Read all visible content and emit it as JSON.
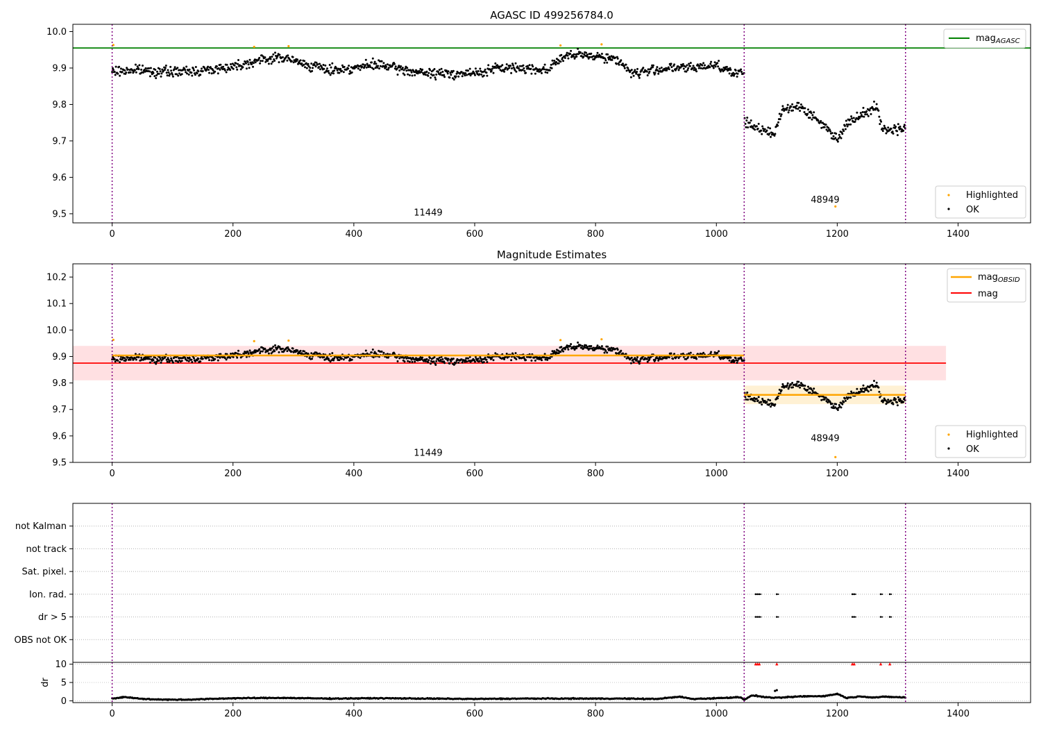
{
  "chart_data": [
    {
      "type": "scatter",
      "title": "AGASC ID 499256784.0",
      "xlim": [
        -65,
        1520
      ],
      "ylim": [
        9.475,
        10.02
      ],
      "xticks": [
        0,
        200,
        400,
        600,
        800,
        1000,
        1200,
        1400
      ],
      "xtick_labels": [
        "0",
        "200",
        "400",
        "600",
        "800",
        "1000",
        "1200",
        "1400"
      ],
      "yticks": [
        9.5,
        9.6,
        9.7,
        9.8,
        9.9,
        10.0
      ],
      "ytick_labels": [
        "9.5",
        "9.6",
        "9.7",
        "9.8",
        "9.9",
        "10.0"
      ],
      "grid": false,
      "obsid_boundaries": [
        0,
        1046,
        1313
      ],
      "obsid_labels": [
        {
          "text": "11449",
          "x": 523,
          "y": 9.495
        },
        {
          "text": "48949",
          "x": 1180,
          "y": 9.53
        }
      ],
      "reference_lines": [
        {
          "name": "mag_AGASC",
          "label_main": "mag",
          "label_sub": "AGASC",
          "y": 9.955,
          "color": "#008000"
        }
      ],
      "series": [
        {
          "name": "OK",
          "color": "#000000",
          "trend_points": [
            [
              0,
              9.89
            ],
            [
              40,
              9.895
            ],
            [
              80,
              9.89
            ],
            [
              120,
              9.89
            ],
            [
              160,
              9.895
            ],
            [
              200,
              9.905
            ],
            [
              240,
              9.92
            ],
            [
              280,
              9.93
            ],
            [
              320,
              9.91
            ],
            [
              360,
              9.895
            ],
            [
              400,
              9.9
            ],
            [
              440,
              9.91
            ],
            [
              480,
              9.895
            ],
            [
              520,
              9.885
            ],
            [
              560,
              9.885
            ],
            [
              600,
              9.885
            ],
            [
              640,
              9.9
            ],
            [
              680,
              9.9
            ],
            [
              720,
              9.895
            ],
            [
              740,
              9.925
            ],
            [
              760,
              9.935
            ],
            [
              800,
              9.935
            ],
            [
              840,
              9.92
            ],
            [
              860,
              9.885
            ],
            [
              880,
              9.89
            ],
            [
              920,
              9.9
            ],
            [
              960,
              9.9
            ],
            [
              1000,
              9.91
            ],
            [
              1030,
              9.885
            ],
            [
              1046,
              9.885
            ],
            [
              1047,
              9.75
            ],
            [
              1070,
              9.735
            ],
            [
              1095,
              9.715
            ],
            [
              1110,
              9.79
            ],
            [
              1140,
              9.795
            ],
            [
              1160,
              9.765
            ],
            [
              1180,
              9.74
            ],
            [
              1200,
              9.705
            ],
            [
              1215,
              9.745
            ],
            [
              1240,
              9.775
            ],
            [
              1265,
              9.795
            ],
            [
              1275,
              9.73
            ],
            [
              1313,
              9.735
            ]
          ],
          "spread": 0.012
        },
        {
          "name": "Highlighted",
          "color": "#ffa500",
          "points": [
            [
              2,
              9.963
            ],
            [
              235,
              9.958
            ],
            [
              292,
              9.96
            ],
            [
              742,
              9.962
            ],
            [
              810,
              9.965
            ],
            [
              1197,
              9.52
            ]
          ]
        }
      ],
      "legends": [
        {
          "placement": "upper-right",
          "entries": [
            "mag_AGASC"
          ]
        },
        {
          "placement": "lower-right",
          "entries": [
            "Highlighted",
            "OK"
          ]
        }
      ]
    },
    {
      "type": "scatter",
      "title": "Magnitude Estimates",
      "xlim": [
        -65,
        1520
      ],
      "ylim": [
        9.5,
        10.25
      ],
      "xticks": [
        0,
        200,
        400,
        600,
        800,
        1000,
        1200,
        1400
      ],
      "xtick_labels": [
        "0",
        "200",
        "400",
        "600",
        "800",
        "1000",
        "1200",
        "1400"
      ],
      "yticks": [
        9.5,
        9.6,
        9.7,
        9.8,
        9.9,
        10.0,
        10.1,
        10.2
      ],
      "ytick_labels": [
        "9.5",
        "9.6",
        "9.7",
        "9.8",
        "9.9",
        "10.0",
        "10.1",
        "10.2"
      ],
      "grid": false,
      "obsid_boundaries": [
        0,
        1046,
        1313
      ],
      "obsid_labels": [
        {
          "text": "11449",
          "x": 523,
          "y": 9.525
        },
        {
          "text": "48949",
          "x": 1180,
          "y": 9.58
        }
      ],
      "mag_line": {
        "name": "mag",
        "y": 9.875,
        "band": [
          9.81,
          9.94
        ],
        "x_range": [
          -65,
          1380
        ],
        "color": "#ff0000",
        "band_color": "#ffe0e2"
      },
      "obsid_mag_segments": [
        {
          "x_range": [
            0,
            1046
          ],
          "y": 9.904,
          "band": [
            9.9,
            9.908
          ]
        },
        {
          "x_range": [
            1046,
            1313
          ],
          "y": 9.755,
          "band": [
            9.72,
            9.79
          ]
        }
      ],
      "obsid_mag_style": {
        "name": "mag_OBSID",
        "label_main": "mag",
        "label_sub": "OBSID",
        "color": "#ffa500",
        "band_color": "#fff1d4"
      },
      "series": [
        {
          "name": "OK",
          "color": "#000000",
          "same_as_panel": 0
        },
        {
          "name": "Highlighted",
          "color": "#ffa500",
          "points": [
            [
              2,
              9.963
            ],
            [
              235,
              9.958
            ],
            [
              292,
              9.96
            ],
            [
              742,
              9.962
            ],
            [
              810,
              9.965
            ],
            [
              1197,
              9.52
            ]
          ]
        }
      ],
      "legends": [
        {
          "placement": "upper-right",
          "entries": [
            "mag_OBSID",
            "mag"
          ]
        },
        {
          "placement": "lower-right",
          "entries": [
            "Highlighted",
            "OK"
          ]
        }
      ]
    },
    {
      "type": "scatter",
      "title": "",
      "categories": [
        "OBS not OK",
        "dr > 5",
        "Ion. rad.",
        "Sat. pixel.",
        "not track",
        "not Kalman"
      ],
      "xlim": [
        -65,
        1520
      ],
      "grid": true,
      "obsid_boundaries": [
        0,
        1046,
        1313
      ],
      "flag_x": [
        1065,
        1068,
        1071,
        1100,
        1225,
        1228,
        1272,
        1287
      ],
      "flag_rows": [
        "dr > 5",
        "Ion. rad."
      ]
    },
    {
      "type": "line",
      "title": "",
      "xlabel": "",
      "ylabel": "dr",
      "xlim": [
        -65,
        1520
      ],
      "ylim": [
        -0.5,
        10.5
      ],
      "xticks": [
        0,
        200,
        400,
        600,
        800,
        1000,
        1200,
        1400
      ],
      "xtick_labels": [
        "0",
        "200",
        "400",
        "600",
        "800",
        "1000",
        "1200",
        "1400"
      ],
      "yticks": [
        0,
        5,
        10
      ],
      "ytick_labels": [
        "0",
        "5",
        "10"
      ],
      "obsid_boundaries": [
        0,
        1046,
        1313
      ],
      "trend_points": [
        [
          0,
          0.6
        ],
        [
          20,
          1.0
        ],
        [
          60,
          0.4
        ],
        [
          120,
          0.3
        ],
        [
          200,
          0.7
        ],
        [
          280,
          0.8
        ],
        [
          360,
          0.6
        ],
        [
          440,
          0.7
        ],
        [
          520,
          0.6
        ],
        [
          600,
          0.5
        ],
        [
          680,
          0.6
        ],
        [
          760,
          0.6
        ],
        [
          840,
          0.6
        ],
        [
          900,
          0.5
        ],
        [
          940,
          1.1
        ],
        [
          960,
          0.5
        ],
        [
          1000,
          0.7
        ],
        [
          1040,
          1.0
        ],
        [
          1046,
          0.3
        ],
        [
          1060,
          1.5
        ],
        [
          1080,
          1.0
        ],
        [
          1100,
          0.8
        ],
        [
          1140,
          1.2
        ],
        [
          1180,
          1.3
        ],
        [
          1200,
          1.9
        ],
        [
          1215,
          0.8
        ],
        [
          1240,
          1.2
        ],
        [
          1260,
          0.9
        ],
        [
          1280,
          1.1
        ],
        [
          1313,
          0.9
        ]
      ],
      "spikes": [
        [
          1100,
          2.9
        ],
        [
          1097,
          2.7
        ]
      ],
      "clipped_markers": {
        "y": 10,
        "x": [
          1065,
          1068,
          1071,
          1100,
          1225,
          1228,
          1272,
          1287
        ],
        "color": "#ff0000"
      }
    }
  ]
}
